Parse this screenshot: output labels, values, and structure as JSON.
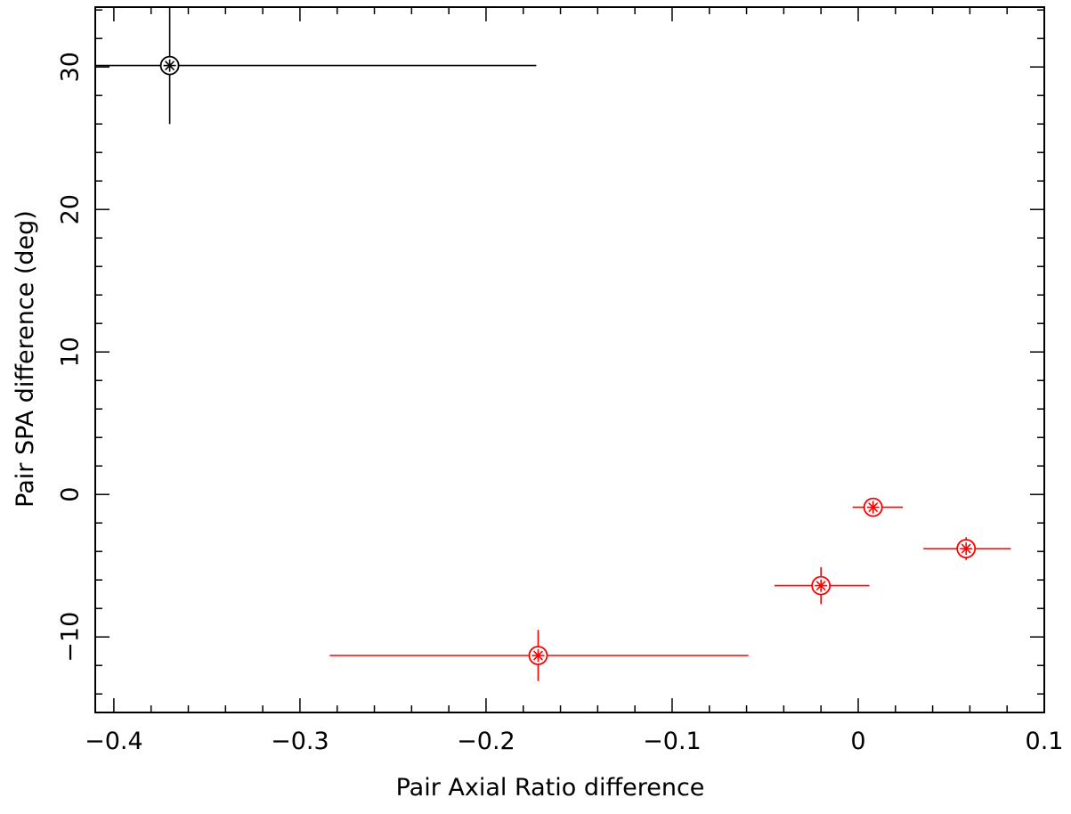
{
  "chart_data": {
    "type": "scatter",
    "xlabel": "Pair Axial Ratio difference",
    "ylabel": "Pair SPA difference (deg)",
    "xlim": [
      -0.41,
      0.1
    ],
    "ylim": [
      -15.3,
      34.2
    ],
    "x_ticks": [
      -0.4,
      -0.3,
      -0.2,
      -0.1,
      0,
      0.1
    ],
    "x_tick_labels": [
      "−0.4",
      "−0.3",
      "−0.2",
      "−0.1",
      "0",
      "0.1"
    ],
    "y_ticks": [
      -10,
      0,
      10,
      20,
      30
    ],
    "y_tick_labels": [
      "−10",
      "0",
      "10",
      "20",
      "30"
    ],
    "grid": false,
    "series": [
      {
        "color": "#000000",
        "marker": "circled-asterisk",
        "points": [
          {
            "x": -0.37,
            "y": 30.1,
            "x_err_low": 0.04,
            "x_err_high": 0.197,
            "y_err_low": 4.1,
            "y_err_high": 4.1
          }
        ]
      },
      {
        "color": "#ff0000",
        "marker": "circled-asterisk",
        "points": [
          {
            "x": -0.172,
            "y": -11.3,
            "x_err_low": 0.112,
            "x_err_high": 0.113,
            "y_err_low": 1.8,
            "y_err_high": 1.8
          },
          {
            "x": -0.02,
            "y": -6.4,
            "x_err_low": 0.025,
            "x_err_high": 0.026,
            "y_err_low": 1.3,
            "y_err_high": 1.3
          },
          {
            "x": 0.008,
            "y": -0.9,
            "x_err_low": 0.011,
            "x_err_high": 0.016,
            "y_err_low": 0.4,
            "y_err_high": 0.4
          },
          {
            "x": 0.058,
            "y": -3.8,
            "x_err_low": 0.023,
            "x_err_high": 0.024,
            "y_err_low": 0.8,
            "y_err_high": 0.8
          }
        ]
      }
    ]
  }
}
